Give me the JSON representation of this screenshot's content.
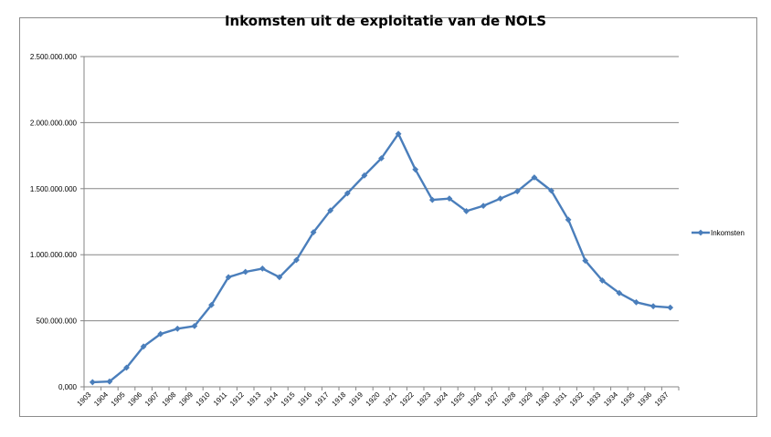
{
  "chart_data": {
    "type": "line",
    "title": "Inkomsten uit de exploitatie van de NOLS",
    "xlabel": "",
    "ylabel": "",
    "ylim": [
      0,
      2500000000
    ],
    "y_ticks": [
      "0,000",
      "500.000.000",
      "1.000.000.000",
      "1.500.000.000",
      "2.000.000.000",
      "2.500.000.000"
    ],
    "grid": true,
    "legend_position": "right",
    "categories": [
      "1903",
      "1904",
      "1905",
      "1906",
      "1907",
      "1908",
      "1909",
      "1910",
      "1911",
      "1912",
      "1913",
      "1914",
      "1915",
      "1916",
      "1917",
      "1918",
      "1919",
      "1920",
      "1921",
      "1922",
      "1923",
      "1924",
      "1925",
      "1926",
      "1927",
      "1928",
      "1929",
      "1930",
      "1931",
      "1932",
      "1933",
      "1934",
      "1935",
      "1936",
      "1937"
    ],
    "series": [
      {
        "name": "Inkomsten",
        "color": "#4a7ebb",
        "values": [
          35000000,
          40000000,
          145000000,
          305000000,
          400000000,
          440000000,
          460000000,
          620000000,
          830000000,
          870000000,
          895000000,
          830000000,
          960000000,
          1170000000,
          1335000000,
          1465000000,
          1600000000,
          1730000000,
          1915000000,
          1645000000,
          1415000000,
          1425000000,
          1330000000,
          1370000000,
          1425000000,
          1480000000,
          1585000000,
          1485000000,
          1265000000,
          955000000,
          805000000,
          710000000,
          640000000,
          610000000,
          600000000
        ]
      }
    ]
  }
}
